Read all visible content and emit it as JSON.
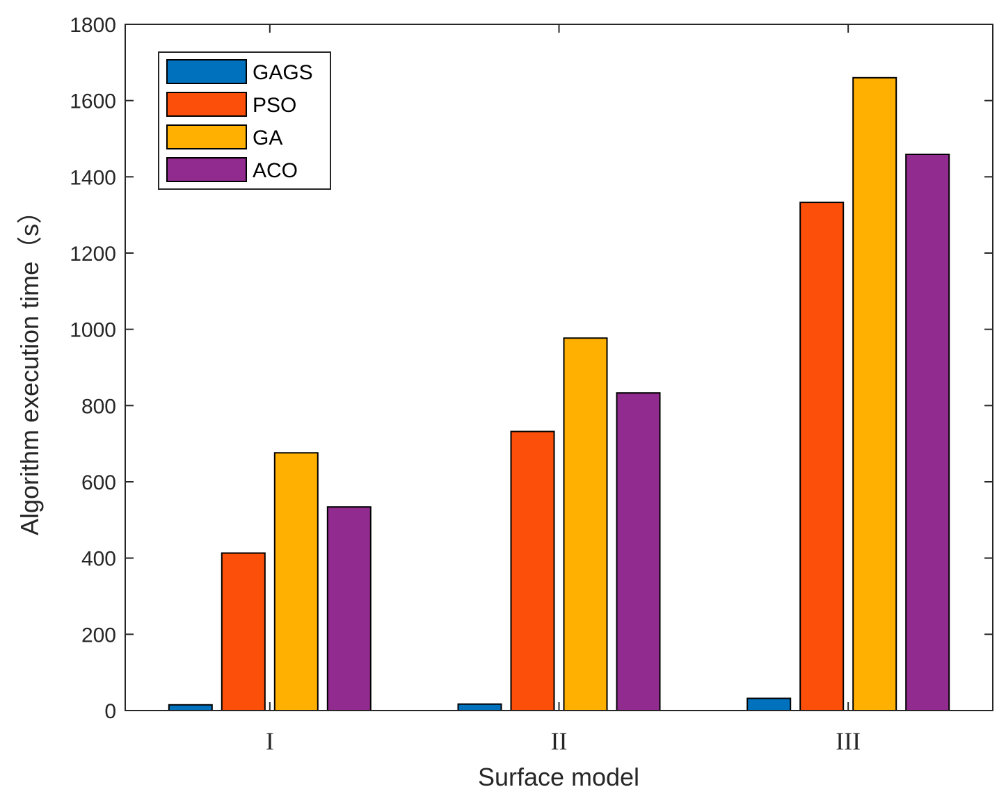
{
  "chart_data": {
    "type": "bar",
    "title": "",
    "xlabel": "Surface model",
    "ylabel": "Algorithm execution time（s）",
    "categories": [
      "I",
      "II",
      "III"
    ],
    "ylim": [
      0,
      1800
    ],
    "yticks": [
      0,
      200,
      400,
      600,
      800,
      1000,
      1200,
      1400,
      1600,
      1800
    ],
    "grid": false,
    "legend_position": "top-left",
    "series": [
      {
        "name": "GAGS",
        "color": "#0072BD",
        "values": [
          15,
          17,
          32
        ]
      },
      {
        "name": "PSO",
        "color": "#FC500A",
        "values": [
          413,
          732,
          1333
        ]
      },
      {
        "name": "GA",
        "color": "#FFB000",
        "values": [
          676,
          977,
          1660
        ]
      },
      {
        "name": "ACO",
        "color": "#922B8F",
        "values": [
          534,
          833,
          1459
        ]
      }
    ]
  }
}
